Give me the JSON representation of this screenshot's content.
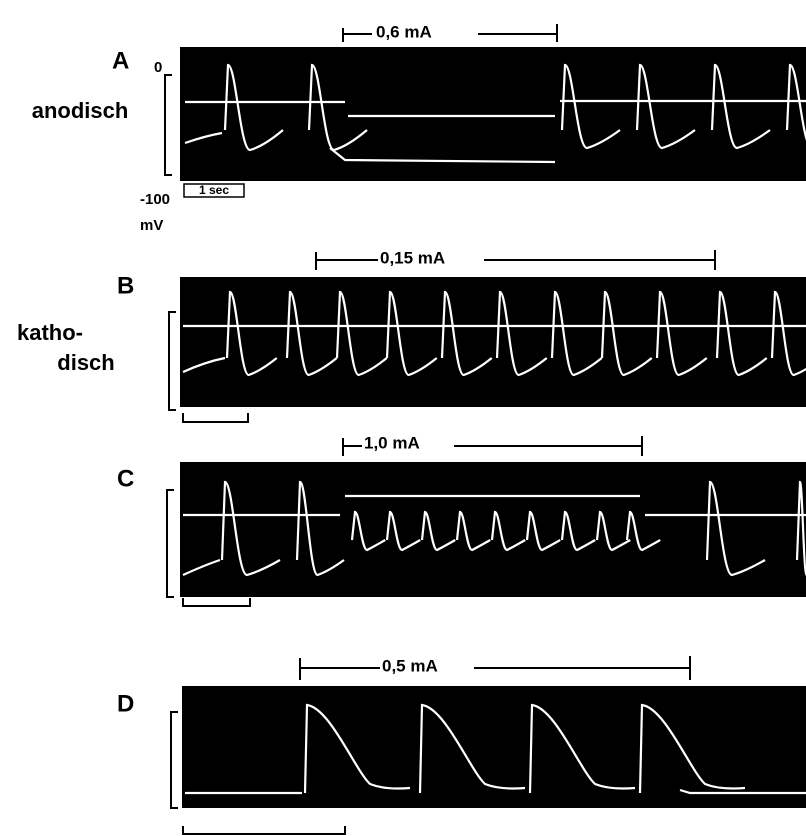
{
  "panels": [
    {
      "label": "A",
      "stimulus": "0,6 mA",
      "side_label": [
        "anodisch"
      ],
      "zero": "0",
      "bottom": "-100",
      "unit": "mV",
      "time": "1 sec"
    },
    {
      "label": "B",
      "stimulus": "0,15 mA",
      "side_label": [
        "katho-",
        "disch"
      ]
    },
    {
      "label": "C",
      "stimulus": "1,0 mA"
    },
    {
      "label": "D",
      "stimulus": "0,5 mA"
    }
  ]
}
